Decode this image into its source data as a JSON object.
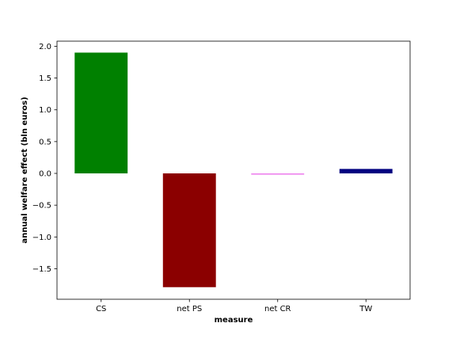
{
  "chart_data": {
    "type": "bar",
    "xlabel": "measure",
    "ylabel": "annual welfare effect (bln euros)",
    "categories": [
      "CS",
      "net PS",
      "net CR",
      "TW"
    ],
    "values": [
      1.9,
      -1.79,
      -0.02,
      0.07
    ],
    "colors": [
      "#008000",
      "#8b0000",
      "#ee82ee",
      "#000080"
    ],
    "ylim": [
      -1.98,
      2.08
    ],
    "yticks": [
      2.0,
      1.5,
      1.0,
      0.5,
      0.0,
      -0.5,
      -1.0,
      -1.5
    ],
    "ytick_labels": [
      "2.0",
      "1.5",
      "1.0",
      "0.5",
      "0.0",
      "−0.5",
      "−1.0",
      "−1.5"
    ],
    "grid": false,
    "legend": "none"
  }
}
